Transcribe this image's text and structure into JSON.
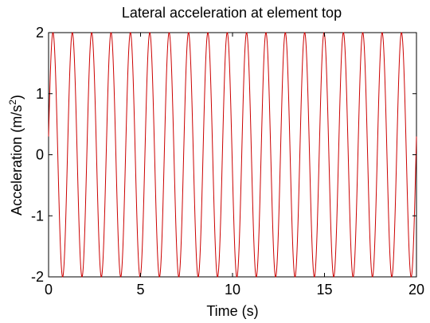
{
  "chart_data": {
    "type": "line",
    "title": "Lateral acceleration at element top",
    "xlabel": "Time (s)",
    "ylabel_text": "Acceleration (m/s",
    "ylabel_superscript": "2",
    "ylabel_close": ")",
    "xlim": [
      0,
      20
    ],
    "ylim": [
      -2,
      2
    ],
    "xticks": [
      "0",
      "5",
      "10",
      "15",
      "20"
    ],
    "yticks": [
      "-2",
      "-1",
      "0",
      "1",
      "2"
    ],
    "grid": false,
    "series": [
      {
        "style": "sinusoid",
        "amplitude": 2,
        "frequency_hz": 0.95,
        "phase_rad": 0.15,
        "x_start": 0,
        "x_end": 20,
        "color": "#cc0000"
      }
    ]
  }
}
